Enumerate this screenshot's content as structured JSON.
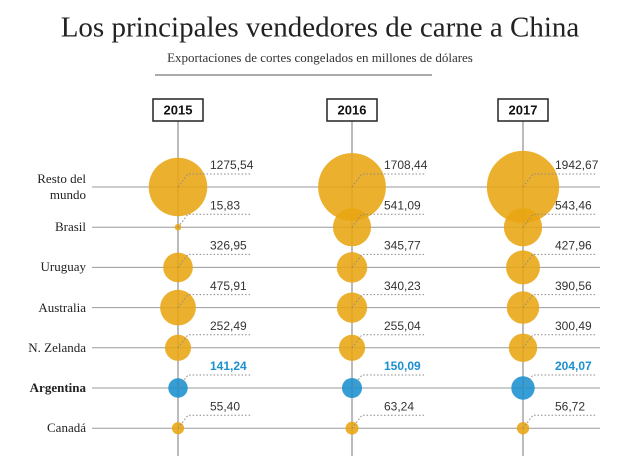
{
  "chart_data": {
    "type": "bubble",
    "title": "Los principales vendedores de carne a China",
    "subtitle": "Exportaciones de cortes congelados en millones de dólares",
    "columns": [
      "2015",
      "2016",
      "2017"
    ],
    "categories": [
      "Resto del mundo",
      "Brasil",
      "Uruguay",
      "Australia",
      "N. Zelanda",
      "Argentina",
      "Canadá"
    ],
    "colors": [
      "#e9a512",
      "#e9a512",
      "#e9a512",
      "#e9a512",
      "#e9a512",
      "#1a90cf",
      "#e9a512"
    ],
    "emphasis": [
      false,
      false,
      false,
      false,
      false,
      true,
      false
    ],
    "series": [
      {
        "name": "2015",
        "values": [
          1275.54,
          15.83,
          326.95,
          475.91,
          252.49,
          141.24,
          55.4
        ],
        "value_labels": [
          "1275,54",
          "15,83",
          "326,95",
          "475,91",
          "252,49",
          "141,24",
          "55,40"
        ]
      },
      {
        "name": "2016",
        "values": [
          1708.44,
          541.09,
          345.77,
          340.23,
          255.04,
          150.09,
          63.24
        ],
        "value_labels": [
          "1708,44",
          "541,09",
          "345,77",
          "340,23",
          "255,04",
          "150,09",
          "63,24"
        ]
      },
      {
        "name": "2017",
        "values": [
          1942.67,
          543.46,
          427.96,
          390.56,
          300.49,
          204.07,
          56.72
        ],
        "value_labels": [
          "1942,67",
          "543,46",
          "427,96",
          "390,56",
          "300,49",
          "204,07",
          "56,72"
        ]
      }
    ]
  }
}
